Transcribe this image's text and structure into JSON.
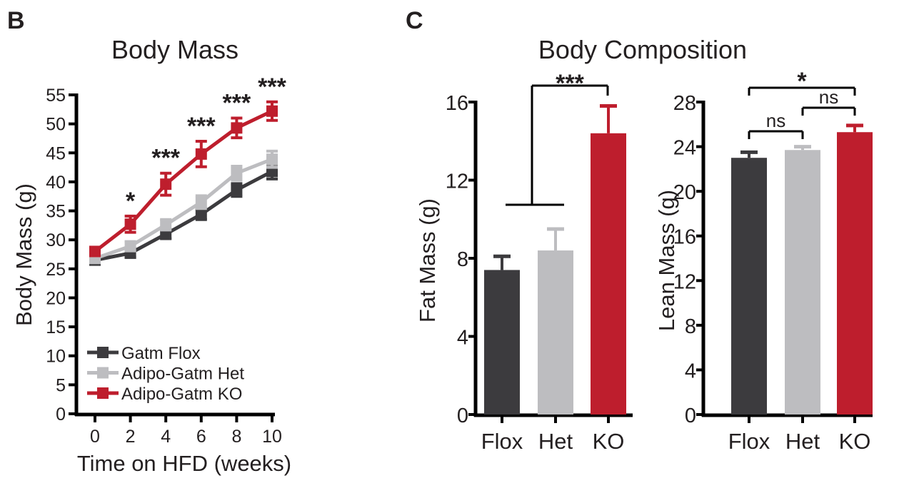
{
  "panels": {
    "b": "B",
    "c": "C"
  },
  "colors": {
    "flox": "#3c3b3e",
    "het": "#bdbdc0",
    "ko": "#be1e2d",
    "axis": "#000000"
  },
  "chart_data": [
    {
      "type": "line",
      "title": "Body Mass",
      "xlabel": "Time on HFD (weeks)",
      "ylabel": "Body Mass (g)",
      "x": [
        0,
        2,
        4,
        6,
        8,
        10
      ],
      "xlim": [
        0,
        10
      ],
      "ylim": [
        0,
        55
      ],
      "yticks": [
        0,
        5,
        10,
        15,
        20,
        25,
        30,
        35,
        40,
        45,
        50,
        55
      ],
      "legend_position": "bottom-left",
      "series": [
        {
          "name": "Gatm Flox",
          "key": "flox",
          "values": [
            26.5,
            27.7,
            31.0,
            34.4,
            38.6,
            41.8
          ],
          "error": [
            0.6,
            0.7,
            0.8,
            0.9,
            1.1,
            1.3
          ]
        },
        {
          "name": "Adipo-Gatm Het",
          "key": "het",
          "values": [
            26.8,
            28.9,
            32.6,
            36.5,
            41.5,
            43.9
          ],
          "error": [
            0.6,
            0.8,
            0.9,
            1.1,
            1.2,
            1.4
          ]
        },
        {
          "name": "Adipo-Gatm KO",
          "key": "ko",
          "values": [
            28.0,
            32.7,
            39.6,
            44.8,
            49.3,
            52.2
          ],
          "error": [
            0.7,
            1.4,
            1.9,
            2.2,
            1.7,
            1.6
          ]
        }
      ],
      "significance": [
        "",
        "*",
        "***",
        "***",
        "***",
        "***"
      ]
    },
    {
      "type": "bar",
      "title": "Body Composition",
      "ylabel": "Fat Mass (g)",
      "categories": [
        "Flox",
        "Het",
        "KO"
      ],
      "values": [
        7.4,
        8.4,
        14.4
      ],
      "error": [
        0.7,
        1.1,
        1.4
      ],
      "ylim": [
        0,
        16
      ],
      "yticks": [
        0,
        4,
        8,
        12,
        16
      ],
      "annotations": [
        {
          "label": "***",
          "compare": "Flox+Het vs KO"
        }
      ]
    },
    {
      "type": "bar",
      "ylabel": "Lean Mass (g)",
      "categories": [
        "Flox",
        "Het",
        "KO"
      ],
      "values": [
        23.0,
        23.7,
        25.3
      ],
      "error": [
        0.5,
        0.3,
        0.6
      ],
      "ylim": [
        0,
        28
      ],
      "yticks": [
        0,
        4,
        8,
        12,
        16,
        20,
        24,
        28
      ],
      "annotations": [
        {
          "label": "ns",
          "compare": "Flox vs Het"
        },
        {
          "label": "ns",
          "compare": "Het vs KO"
        },
        {
          "label": "*",
          "compare": "Flox vs KO"
        }
      ]
    }
  ]
}
